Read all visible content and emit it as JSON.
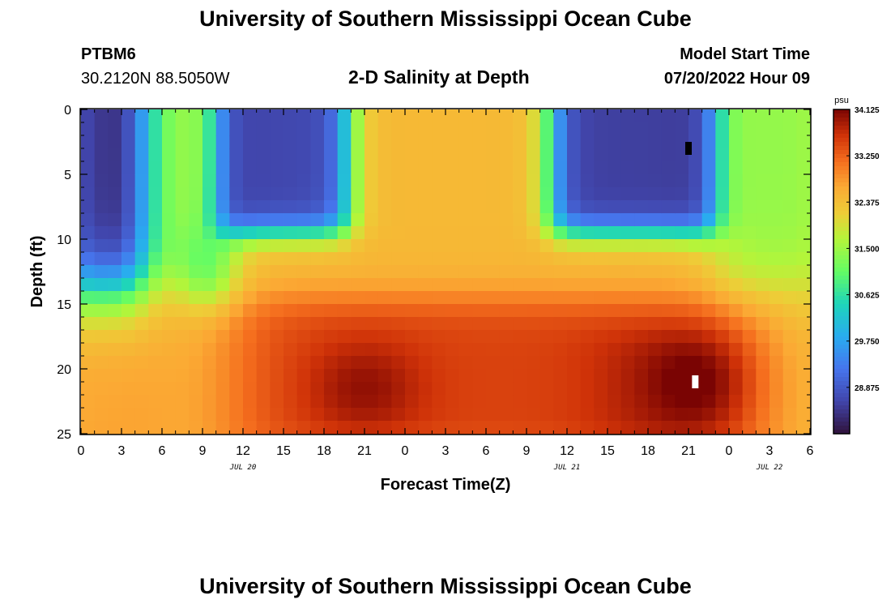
{
  "page": {
    "title_top": "University of Southern Mississippi Ocean Cube",
    "title_bottom": "University of Southern Mississippi Ocean Cube",
    "station_id": "PTBM6",
    "station_coords": "30.2120N  88.5050W",
    "plot_title": "2-D Salinity at Depth",
    "model_start_label": "Model Start Time",
    "model_start_value": "07/20/2022 Hour 09"
  },
  "chart_data": {
    "type": "heatmap",
    "title": "2-D Salinity at Depth",
    "xlabel": "Forecast Time(Z)",
    "ylabel": "Depth (ft)",
    "x_range_hours": [
      0,
      54
    ],
    "y_range_ft": [
      0,
      25
    ],
    "x_ticks": [
      "0",
      "3",
      "6",
      "9",
      "12",
      "15",
      "18",
      "21",
      "0",
      "3",
      "6",
      "9",
      "12",
      "15",
      "18",
      "21",
      "0",
      "3",
      "6"
    ],
    "y_ticks": [
      "0",
      "5",
      "10",
      "15",
      "20",
      "25"
    ],
    "date_labels": [
      {
        "text": "JUL 20",
        "hour": 12
      },
      {
        "text": "JUL 21",
        "hour": 36
      },
      {
        "text": "JUL 22",
        "hour": 51
      }
    ],
    "colorbar": {
      "unit": "psu",
      "min": 28.0,
      "max": 34.125,
      "tick_labels": [
        "34.125",
        "33.250",
        "32.375",
        "31.500",
        "30.625",
        "29.750",
        "28.875"
      ]
    },
    "markers": [
      {
        "color": "#000000",
        "hour": 45,
        "depth_ft": 3
      },
      {
        "color": "#ffffff",
        "hour": 45.5,
        "depth_ft": 21
      }
    ],
    "grid_cols": 54,
    "grid_rows": 25,
    "salinity_description": "Upper layer fresher (blue) around hours 0-5, 10-20 and 35-47; salty (red) bottom layer from hour 12 to 50 at 15-25 ft."
  }
}
